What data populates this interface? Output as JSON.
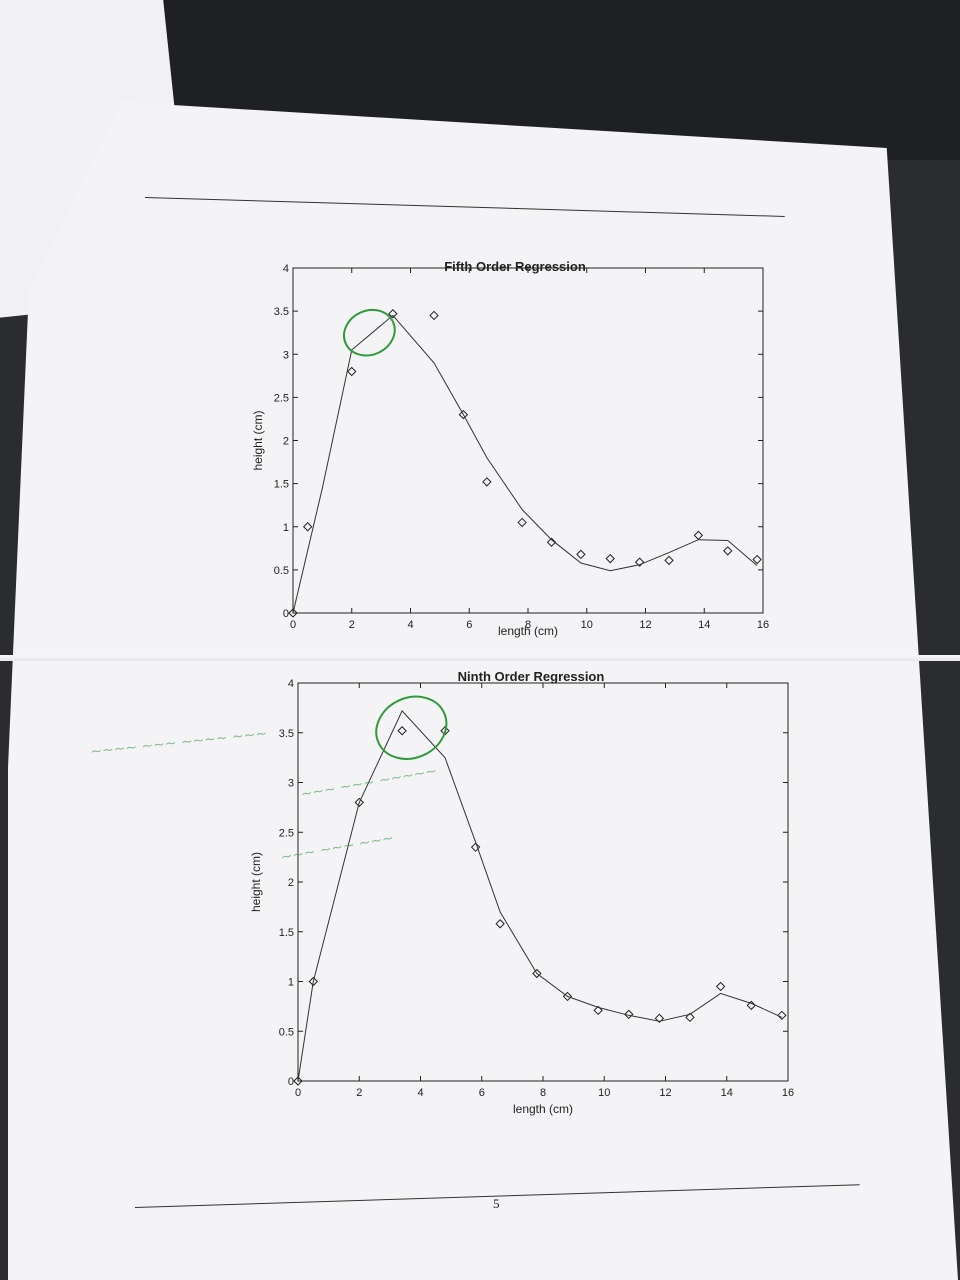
{
  "page": {
    "page_number": "5"
  },
  "chart_data": [
    {
      "type": "scatter",
      "title": "Fifth Order Regression",
      "xlabel": "length (cm)",
      "ylabel": "height (cm)",
      "xlim": [
        0,
        16
      ],
      "ylim": [
        0,
        4
      ],
      "xticks": [
        0,
        2,
        4,
        6,
        8,
        10,
        12,
        14,
        16
      ],
      "yticks": [
        0,
        0.5,
        1,
        1.5,
        2,
        2.5,
        3,
        3.5,
        4
      ],
      "grid": false,
      "series": [
        {
          "kind": "markers",
          "marker": "diamond",
          "x": [
            0,
            0.5,
            2,
            3.4,
            4.8,
            5.8,
            6.6,
            7.8,
            8.8,
            9.8,
            10.8,
            11.8,
            12.8,
            13.8,
            14.8,
            15.8
          ],
          "y": [
            0,
            1.0,
            2.8,
            3.47,
            3.45,
            2.3,
            1.52,
            1.05,
            0.82,
            0.68,
            0.63,
            0.59,
            0.61,
            0.9,
            0.72,
            0.62
          ]
        },
        {
          "kind": "line",
          "x": [
            0,
            1,
            2,
            3.4,
            4.8,
            5.8,
            6.6,
            7.8,
            8.8,
            9.8,
            10.8,
            11.8,
            12.8,
            13.8,
            14.8,
            15.8
          ],
          "y": [
            0,
            1.45,
            3.05,
            3.45,
            2.9,
            2.3,
            1.8,
            1.2,
            0.85,
            0.58,
            0.49,
            0.56,
            0.7,
            0.85,
            0.84,
            0.55
          ]
        }
      ]
    },
    {
      "type": "scatter",
      "title": "Ninth Order Regression",
      "xlabel": "length (cm)",
      "ylabel": "height (cm)",
      "xlim": [
        0,
        16
      ],
      "ylim": [
        0,
        4
      ],
      "xticks": [
        0,
        2,
        4,
        6,
        8,
        10,
        12,
        14,
        16
      ],
      "yticks": [
        0,
        0.5,
        1,
        1.5,
        2,
        2.5,
        3,
        3.5,
        4
      ],
      "grid": false,
      "series": [
        {
          "kind": "markers",
          "marker": "diamond",
          "x": [
            0,
            0.5,
            2,
            3.4,
            4.8,
            5.8,
            6.6,
            7.8,
            8.8,
            9.8,
            10.8,
            11.8,
            12.8,
            13.8,
            14.8,
            15.8
          ],
          "y": [
            0,
            1.0,
            2.8,
            3.52,
            3.52,
            2.35,
            1.58,
            1.08,
            0.85,
            0.71,
            0.67,
            0.63,
            0.64,
            0.95,
            0.76,
            0.66
          ]
        },
        {
          "kind": "line",
          "x": [
            0,
            0.5,
            2,
            3.4,
            4.8,
            5.8,
            6.6,
            7.8,
            8.8,
            9.8,
            10.8,
            11.8,
            12.8,
            13.8,
            14.8,
            15.8
          ],
          "y": [
            0,
            1.0,
            2.8,
            3.72,
            3.25,
            2.4,
            1.7,
            1.08,
            0.85,
            0.74,
            0.66,
            0.6,
            0.67,
            0.88,
            0.78,
            0.64
          ]
        }
      ]
    }
  ]
}
